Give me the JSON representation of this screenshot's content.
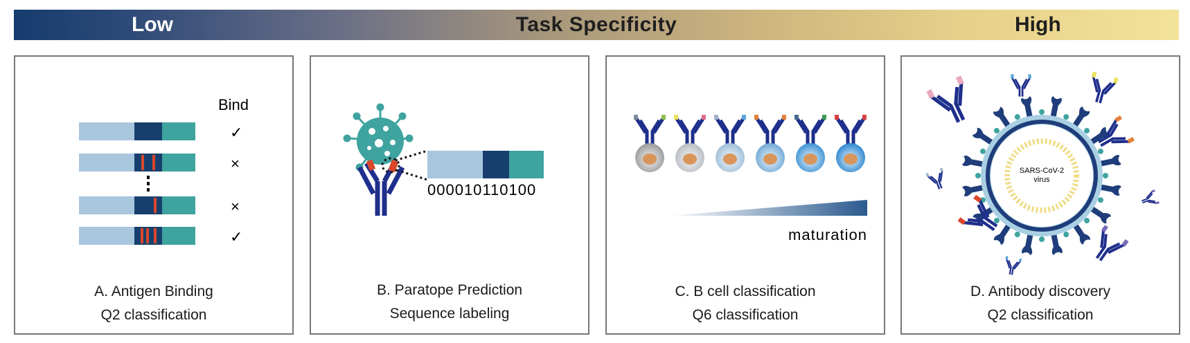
{
  "banner": {
    "low": "Low",
    "title": "Task Specificity",
    "high": "High"
  },
  "panels": [
    {
      "id": "A",
      "title": "A. Antigen Binding",
      "subtitle": "Q2 classification",
      "header": "Bind",
      "results": [
        "✓",
        "×",
        "×",
        "✓"
      ]
    },
    {
      "id": "B",
      "title": "B. Paratope Prediction",
      "subtitle": "Sequence labeling",
      "binary": "000010110100"
    },
    {
      "id": "C",
      "title": "C. B cell classification",
      "subtitle": "Q6 classification",
      "axis_label": "maturation"
    },
    {
      "id": "D",
      "title": "D. Antibody discovery",
      "subtitle": "Q2 classification",
      "virus_label_1": "SARS-CoV-2",
      "virus_label_2": "virus"
    }
  ],
  "colors": {
    "light_blue": "#a8c6de",
    "navy": "#173f6e",
    "teal": "#3fa39f",
    "red": "#d9482b",
    "antibody": "#1f2f8c"
  }
}
